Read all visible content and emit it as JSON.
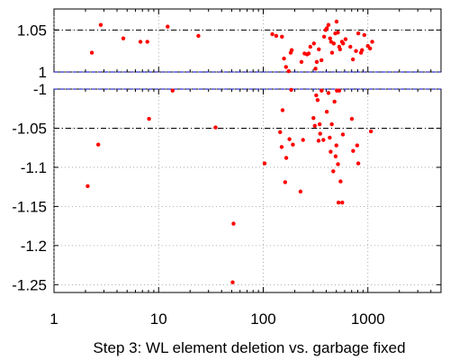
{
  "chart_data": {
    "type": "scatter",
    "title": "",
    "xlabel": "Step 3: WL element deletion vs. garbage fixed",
    "ylabel": "",
    "x_scale": "log",
    "xlim": [
      1,
      5000
    ],
    "x_ticks": [
      1,
      10,
      100,
      1000
    ],
    "x_tick_labels": [
      "1",
      "10",
      "100",
      "1000"
    ],
    "grid": true,
    "grid_style": "dotted",
    "legend": "none",
    "marker_color": "#ff0000",
    "reference_line_color": "#0000cc",
    "major_line_color": "#000000",
    "panels": [
      {
        "name": "upper",
        "ylim": [
          1.0,
          1.075
        ],
        "y_ticks": [
          1.0,
          1.05
        ],
        "y_tick_labels": [
          "1",
          "1.05"
        ],
        "dashed_lines": [
          1.0
        ],
        "dashdot_lines": [
          1.05
        ],
        "points": [
          {
            "x": 2.3,
            "y": 1.023
          },
          {
            "x": 2.8,
            "y": 1.056
          },
          {
            "x": 4.6,
            "y": 1.04
          },
          {
            "x": 6.7,
            "y": 1.036
          },
          {
            "x": 7.8,
            "y": 1.036
          },
          {
            "x": 12.2,
            "y": 1.054
          },
          {
            "x": 24,
            "y": 1.043
          },
          {
            "x": 122,
            "y": 1.045
          },
          {
            "x": 133,
            "y": 1.043
          },
          {
            "x": 151,
            "y": 1.042
          },
          {
            "x": 158,
            "y": 1.016
          },
          {
            "x": 165,
            "y": 1.006
          },
          {
            "x": 175,
            "y": 1.001
          },
          {
            "x": 183,
            "y": 1.023
          },
          {
            "x": 187,
            "y": 1.026
          },
          {
            "x": 232,
            "y": 1.012
          },
          {
            "x": 248,
            "y": 1.022
          },
          {
            "x": 262,
            "y": 1.021
          },
          {
            "x": 272,
            "y": 1.022
          },
          {
            "x": 282,
            "y": 1.03
          },
          {
            "x": 305,
            "y": 1.034
          },
          {
            "x": 316,
            "y": 1.004
          },
          {
            "x": 325,
            "y": 1.012
          },
          {
            "x": 340,
            "y": 1.027
          },
          {
            "x": 360,
            "y": 1.014
          },
          {
            "x": 382,
            "y": 1.042
          },
          {
            "x": 395,
            "y": 1.05
          },
          {
            "x": 405,
            "y": 1.052
          },
          {
            "x": 420,
            "y": 1.056
          },
          {
            "x": 435,
            "y": 1.04
          },
          {
            "x": 445,
            "y": 1.036
          },
          {
            "x": 455,
            "y": 1.023
          },
          {
            "x": 472,
            "y": 1.034
          },
          {
            "x": 488,
            "y": 1.046
          },
          {
            "x": 502,
            "y": 1.06
          },
          {
            "x": 517,
            "y": 1.047
          },
          {
            "x": 532,
            "y": 1.03
          },
          {
            "x": 542,
            "y": 1.027
          },
          {
            "x": 565,
            "y": 1.036
          },
          {
            "x": 580,
            "y": 1.034
          },
          {
            "x": 612,
            "y": 1.039
          },
          {
            "x": 680,
            "y": 1.03
          },
          {
            "x": 720,
            "y": 1.015
          },
          {
            "x": 770,
            "y": 1.025
          },
          {
            "x": 810,
            "y": 1.046
          },
          {
            "x": 860,
            "y": 1.023
          },
          {
            "x": 880,
            "y": 1.026
          },
          {
            "x": 925,
            "y": 1.044
          },
          {
            "x": 1000,
            "y": 1.031
          },
          {
            "x": 1050,
            "y": 1.028
          },
          {
            "x": 1100,
            "y": 1.036
          }
        ]
      },
      {
        "name": "lower",
        "ylim": [
          -1.26,
          -1.0
        ],
        "y_ticks": [
          -1.0,
          -1.05,
          -1.1,
          -1.15,
          -1.2,
          -1.25
        ],
        "y_tick_labels": [
          "-1",
          "-1.05",
          "-1.1",
          "-1.15",
          "-1.2",
          "-1.25"
        ],
        "dashed_lines": [
          -1.0
        ],
        "dashdot_lines": [
          -1.05
        ],
        "points": [
          {
            "x": 2.1,
            "y": -1.124
          },
          {
            "x": 2.65,
            "y": -1.071
          },
          {
            "x": 8.1,
            "y": -1.038
          },
          {
            "x": 13.6,
            "y": -1.002
          },
          {
            "x": 35,
            "y": -1.049
          },
          {
            "x": 51,
            "y": -1.247
          },
          {
            "x": 52,
            "y": -1.172
          },
          {
            "x": 103,
            "y": -1.095
          },
          {
            "x": 145,
            "y": -1.055
          },
          {
            "x": 150,
            "y": -1.074
          },
          {
            "x": 153,
            "y": -1.027
          },
          {
            "x": 162,
            "y": -1.119
          },
          {
            "x": 166,
            "y": -1.088
          },
          {
            "x": 178,
            "y": -1.064
          },
          {
            "x": 185,
            "y": -1.001
          },
          {
            "x": 192,
            "y": -1.071
          },
          {
            "x": 227,
            "y": -1.131
          },
          {
            "x": 240,
            "y": -1.065
          },
          {
            "x": 302,
            "y": -1.037
          },
          {
            "x": 311,
            "y": -1.047
          },
          {
            "x": 321,
            "y": -1.008
          },
          {
            "x": 331,
            "y": -1.014
          },
          {
            "x": 338,
            "y": -1.066
          },
          {
            "x": 346,
            "y": -1.045
          },
          {
            "x": 350,
            "y": -1.057
          },
          {
            "x": 361,
            "y": -1.002
          },
          {
            "x": 376,
            "y": -1.065
          },
          {
            "x": 405,
            "y": -1.029
          },
          {
            "x": 420,
            "y": -1.005
          },
          {
            "x": 432,
            "y": -1.062
          },
          {
            "x": 441,
            "y": -1.08
          },
          {
            "x": 452,
            "y": -1.045
          },
          {
            "x": 467,
            "y": -1.105
          },
          {
            "x": 480,
            "y": -1.016
          },
          {
            "x": 492,
            "y": -1.086
          },
          {
            "x": 500,
            "y": -1.072
          },
          {
            "x": 506,
            "y": -1.002
          },
          {
            "x": 518,
            "y": -1.096
          },
          {
            "x": 524,
            "y": -1.145
          },
          {
            "x": 532,
            "y": -1.002
          },
          {
            "x": 548,
            "y": -1.118
          },
          {
            "x": 569,
            "y": -1.145
          },
          {
            "x": 577,
            "y": -1.058
          },
          {
            "x": 703,
            "y": -1.038
          },
          {
            "x": 723,
            "y": -1.079
          },
          {
            "x": 790,
            "y": -1.072
          },
          {
            "x": 810,
            "y": -1.095
          },
          {
            "x": 1070,
            "y": -1.054
          }
        ]
      }
    ]
  }
}
